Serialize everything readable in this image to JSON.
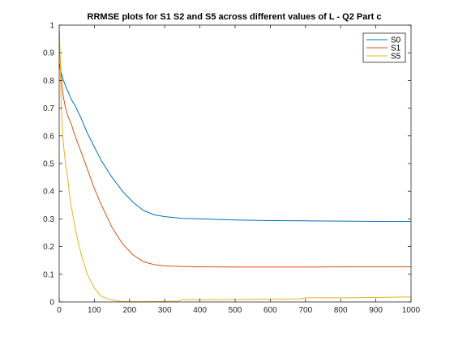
{
  "chart_data": {
    "type": "line",
    "title": "RRMSE plots for S1 S2 and S5 across different values of L - Q2 Part c",
    "xlabel": "",
    "ylabel": "",
    "xlim": [
      0,
      1000
    ],
    "ylim": [
      0,
      1
    ],
    "x_ticks": [
      "0",
      "100",
      "200",
      "300",
      "400",
      "500",
      "600",
      "700",
      "800",
      "900",
      "1000"
    ],
    "y_ticks": [
      "0",
      "0.1",
      "0.2",
      "0.3",
      "0.4",
      "0.5",
      "0.6",
      "0.7",
      "0.8",
      "0.9",
      "1"
    ],
    "grid": false,
    "legend_position": "top-right",
    "series": [
      {
        "name": "S0",
        "color": "#0072BD",
        "x": [
          1,
          3,
          5,
          8,
          12,
          18,
          25,
          35,
          45,
          60,
          80,
          100,
          120,
          150,
          180,
          210,
          240,
          270,
          300,
          350,
          400,
          500,
          600,
          700,
          800,
          900,
          1000
        ],
        "y": [
          0.86,
          0.84,
          0.83,
          0.82,
          0.8,
          0.78,
          0.76,
          0.73,
          0.71,
          0.67,
          0.61,
          0.56,
          0.51,
          0.45,
          0.4,
          0.36,
          0.33,
          0.315,
          0.308,
          0.302,
          0.3,
          0.296,
          0.294,
          0.293,
          0.292,
          0.291,
          0.291
        ]
      },
      {
        "name": "S1",
        "color": "#D95319",
        "x": [
          1,
          3,
          5,
          8,
          12,
          18,
          25,
          35,
          45,
          60,
          80,
          100,
          120,
          150,
          180,
          210,
          240,
          270,
          300,
          350,
          400,
          500,
          600,
          700,
          800,
          900,
          1000
        ],
        "y": [
          0.93,
          0.88,
          0.83,
          0.78,
          0.74,
          0.7,
          0.67,
          0.64,
          0.6,
          0.55,
          0.48,
          0.41,
          0.35,
          0.27,
          0.21,
          0.17,
          0.145,
          0.135,
          0.13,
          0.128,
          0.127,
          0.126,
          0.126,
          0.126,
          0.127,
          0.127,
          0.127
        ]
      },
      {
        "name": "S5",
        "color": "#EDB120",
        "x": [
          1,
          3,
          5,
          8,
          12,
          18,
          25,
          30,
          35,
          45,
          55,
          65,
          80,
          100,
          120,
          140,
          160,
          180,
          200,
          250,
          300,
          340,
          350,
          400,
          500,
          600,
          680,
          700,
          800,
          900,
          980,
          1000
        ],
        "y": [
          0.98,
          0.86,
          0.75,
          0.65,
          0.57,
          0.5,
          0.44,
          0.38,
          0.34,
          0.27,
          0.21,
          0.16,
          0.1,
          0.05,
          0.02,
          0.01,
          0.004,
          0.002,
          0.001,
          0.001,
          0.002,
          0.003,
          0.008,
          0.008,
          0.009,
          0.01,
          0.011,
          0.015,
          0.015,
          0.016,
          0.018,
          0.018
        ]
      }
    ]
  }
}
